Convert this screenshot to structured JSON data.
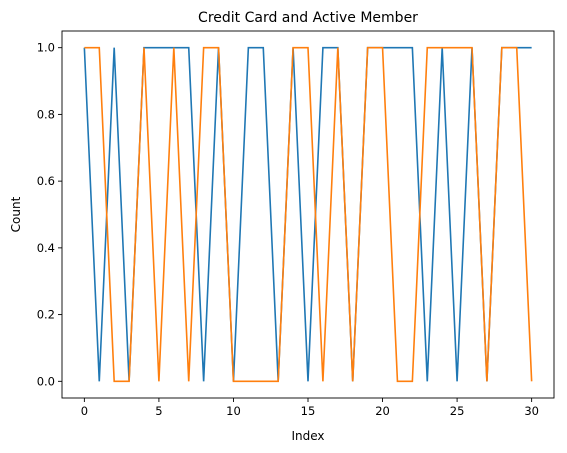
{
  "chart_data": {
    "type": "line",
    "title": "Credit Card and Active Member",
    "xlabel": "Index",
    "ylabel": "Count",
    "xlim": [
      -1.5,
      31.5
    ],
    "ylim": [
      -0.05,
      1.05
    ],
    "xticks": [
      0,
      5,
      10,
      15,
      20,
      25,
      30
    ],
    "yticks": [
      0.0,
      0.2,
      0.4,
      0.6,
      0.8,
      1.0
    ],
    "ytick_labels": [
      "0.0",
      "0.2",
      "0.4",
      "0.6",
      "0.8",
      "1.0"
    ],
    "grid": false,
    "x": [
      0,
      1,
      2,
      3,
      4,
      5,
      6,
      7,
      8,
      9,
      10,
      11,
      12,
      13,
      14,
      15,
      16,
      17,
      18,
      19,
      20,
      21,
      22,
      23,
      24,
      25,
      26,
      27,
      28,
      29,
      30
    ],
    "series": [
      {
        "color": "#1f77b4",
        "values": [
          1,
          0,
          1,
          0,
          1,
          1,
          1,
          1,
          0,
          1,
          0,
          1,
          1,
          0,
          1,
          0,
          1,
          1,
          0,
          1,
          1,
          1,
          1,
          0,
          1,
          0,
          1,
          0,
          1,
          1,
          1
        ]
      },
      {
        "color": "#ff7f0e",
        "values": [
          1,
          1,
          0,
          0,
          1,
          0,
          1,
          0,
          1,
          1,
          0,
          0,
          0,
          0,
          1,
          1,
          0,
          1,
          0,
          1,
          1,
          0,
          0,
          1,
          1,
          1,
          1,
          0,
          1,
          1,
          0
        ]
      }
    ]
  }
}
